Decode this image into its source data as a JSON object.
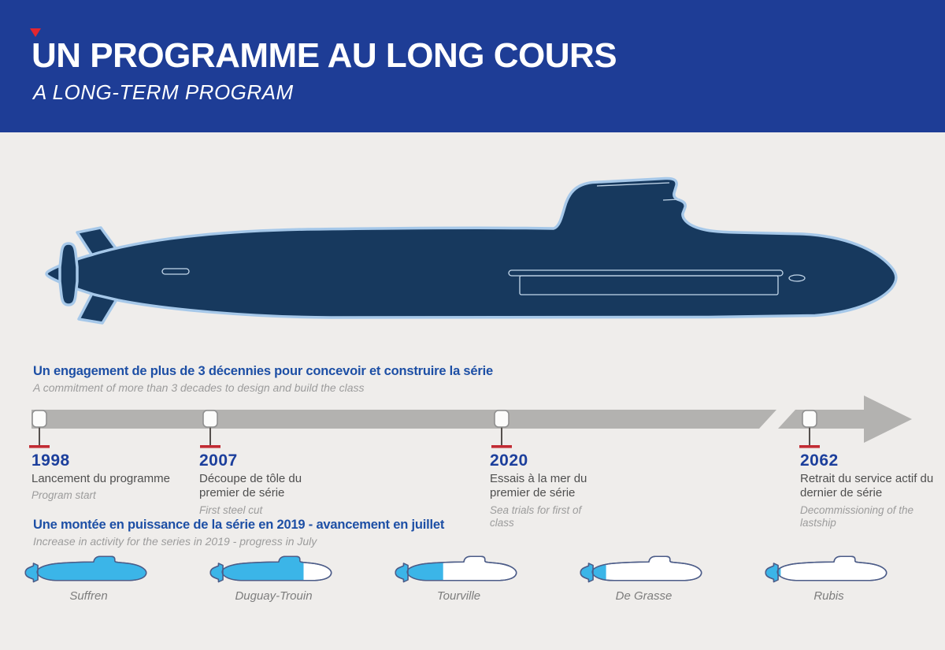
{
  "header": {
    "title": "UN PROGRAMME AU LONG COURS",
    "subtitle": "A LONG-TERM PROGRAM"
  },
  "timeline_section": {
    "heading_fr": "Un engagement de plus de 3 décennies pour concevoir et construire la série",
    "heading_en": "A commitment of more than 3 decades to design and build the class",
    "milestones": [
      {
        "year": "1998",
        "label_fr": "Lancement du programme",
        "label_en": "Program start"
      },
      {
        "year": "2007",
        "label_fr": "Découpe de tôle du premier de série",
        "label_en": "First steel cut"
      },
      {
        "year": "2020",
        "label_fr": "Essais à la mer du premier de série",
        "label_en": "Sea trials for first of class"
      },
      {
        "year": "2062",
        "label_fr": "Retrait du service actif du dernier de série",
        "label_en": "Decommissioning of the lastship"
      }
    ]
  },
  "fleet_section": {
    "heading_fr": "Une montée en puissance de la série en 2019 - avancement en juillet",
    "heading_en": "Increase in activity for the series in 2019 - progress in July",
    "ships": [
      {
        "name": "Suffren",
        "progress_percent": 97
      },
      {
        "name": "Duguay-Trouin",
        "progress_percent": 73
      },
      {
        "name": "Tourville",
        "progress_percent": 38
      },
      {
        "name": "De Grasse",
        "progress_percent": 21
      },
      {
        "name": "Rubis",
        "progress_percent": 13
      }
    ]
  },
  "colors": {
    "header_blue": "#1e3d96",
    "accent_red": "#e32630",
    "heading_blue": "#1d4fa5",
    "year_blue": "#1c3f9c",
    "hull_navy": "#17395e",
    "hull_outline": "#a6c8e9",
    "progress_cyan": "#3bb5e8",
    "sub_outline": "#4c5c88",
    "bg": "#efedeb"
  }
}
